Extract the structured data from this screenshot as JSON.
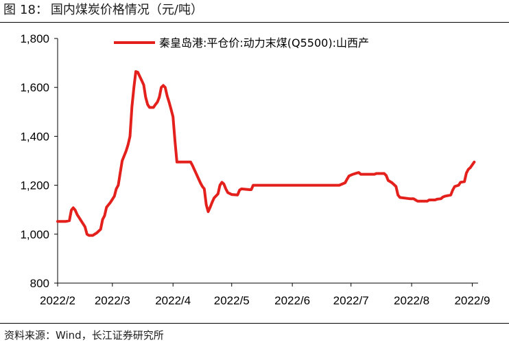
{
  "figure": {
    "label": "图",
    "number": "18：",
    "title": "国内煤炭价格情况（元/吨）"
  },
  "source_text": "资料来源：Wind，长江证券研究所",
  "chart_data": {
    "type": "line",
    "title": "国内煤炭价格情况（元/吨）",
    "xlabel": "",
    "ylabel": "",
    "ylim": [
      800,
      1800
    ],
    "yticks": [
      800,
      1000,
      1200,
      1400,
      1600,
      1800
    ],
    "ytick_labels": [
      "800",
      "1,000",
      "1,200",
      "1,400",
      "1,600",
      "1,800"
    ],
    "xlim": [
      "2022-02-01",
      "2022-09-04"
    ],
    "xticks": [
      "2022-02-01",
      "2022-03-01",
      "2022-04-01",
      "2022-05-01",
      "2022-06-01",
      "2022-07-01",
      "2022-08-01",
      "2022-09-01"
    ],
    "xtick_labels": [
      "2022/2",
      "2022/3",
      "2022/4",
      "2022/5",
      "2022/6",
      "2022/7",
      "2022/8",
      "2022/9"
    ],
    "grid": false,
    "legend_position": "top",
    "series": [
      {
        "name": "秦皇岛港:平仓价:动力末煤(Q5500):山西产",
        "color": "#e3201b",
        "points": [
          [
            "2022-02-01",
            1052
          ],
          [
            "2022-02-05",
            1052
          ],
          [
            "2022-02-07",
            1055
          ],
          [
            "2022-02-08",
            1098
          ],
          [
            "2022-02-09",
            1108
          ],
          [
            "2022-02-10",
            1098
          ],
          [
            "2022-02-11",
            1080
          ],
          [
            "2022-02-13",
            1055
          ],
          [
            "2022-02-15",
            1030
          ],
          [
            "2022-02-16",
            1000
          ],
          [
            "2022-02-17",
            995
          ],
          [
            "2022-02-19",
            995
          ],
          [
            "2022-02-21",
            1005
          ],
          [
            "2022-02-23",
            1020
          ],
          [
            "2022-02-24",
            1060
          ],
          [
            "2022-02-25",
            1075
          ],
          [
            "2022-02-26",
            1110
          ],
          [
            "2022-02-28",
            1130
          ],
          [
            "2022-03-02",
            1155
          ],
          [
            "2022-03-03",
            1185
          ],
          [
            "2022-03-04",
            1200
          ],
          [
            "2022-03-05",
            1250
          ],
          [
            "2022-03-06",
            1300
          ],
          [
            "2022-03-08",
            1340
          ],
          [
            "2022-03-09",
            1365
          ],
          [
            "2022-03-10",
            1400
          ],
          [
            "2022-03-11",
            1520
          ],
          [
            "2022-03-12",
            1600
          ],
          [
            "2022-03-13",
            1665
          ],
          [
            "2022-03-14",
            1662
          ],
          [
            "2022-03-15",
            1645
          ],
          [
            "2022-03-16",
            1628
          ],
          [
            "2022-03-17",
            1610
          ],
          [
            "2022-03-18",
            1560
          ],
          [
            "2022-03-19",
            1530
          ],
          [
            "2022-03-20",
            1518
          ],
          [
            "2022-03-22",
            1518
          ],
          [
            "2022-03-23",
            1530
          ],
          [
            "2022-03-24",
            1540
          ],
          [
            "2022-03-25",
            1560
          ],
          [
            "2022-03-26",
            1600
          ],
          [
            "2022-03-27",
            1608
          ],
          [
            "2022-03-28",
            1600
          ],
          [
            "2022-03-29",
            1565
          ],
          [
            "2022-03-30",
            1540
          ],
          [
            "2022-03-31",
            1510
          ],
          [
            "2022-04-01",
            1480
          ],
          [
            "2022-04-02",
            1380
          ],
          [
            "2022-04-03",
            1295
          ],
          [
            "2022-04-05",
            1295
          ],
          [
            "2022-04-10",
            1295
          ],
          [
            "2022-04-11",
            1280
          ],
          [
            "2022-04-13",
            1245
          ],
          [
            "2022-04-15",
            1210
          ],
          [
            "2022-04-16",
            1195
          ],
          [
            "2022-04-17",
            1185
          ],
          [
            "2022-04-18",
            1120
          ],
          [
            "2022-04-19",
            1092
          ],
          [
            "2022-04-20",
            1110
          ],
          [
            "2022-04-21",
            1130
          ],
          [
            "2022-04-22",
            1148
          ],
          [
            "2022-04-24",
            1165
          ],
          [
            "2022-04-25",
            1200
          ],
          [
            "2022-04-26",
            1212
          ],
          [
            "2022-04-27",
            1205
          ],
          [
            "2022-04-28",
            1185
          ],
          [
            "2022-04-29",
            1170
          ],
          [
            "2022-05-01",
            1162
          ],
          [
            "2022-05-04",
            1160
          ],
          [
            "2022-05-05",
            1180
          ],
          [
            "2022-05-06",
            1185
          ],
          [
            "2022-05-10",
            1182
          ],
          [
            "2022-05-11",
            1182
          ],
          [
            "2022-05-12",
            1200
          ],
          [
            "2022-05-25",
            1200
          ],
          [
            "2022-06-01",
            1200
          ],
          [
            "2022-06-15",
            1200
          ],
          [
            "2022-06-25",
            1200
          ],
          [
            "2022-06-28",
            1210
          ],
          [
            "2022-06-29",
            1225
          ],
          [
            "2022-06-30",
            1238
          ],
          [
            "2022-07-02",
            1245
          ],
          [
            "2022-07-04",
            1250
          ],
          [
            "2022-07-05",
            1252
          ],
          [
            "2022-07-06",
            1245
          ],
          [
            "2022-07-13",
            1245
          ],
          [
            "2022-07-14",
            1248
          ],
          [
            "2022-07-18",
            1248
          ],
          [
            "2022-07-19",
            1240
          ],
          [
            "2022-07-20",
            1220
          ],
          [
            "2022-07-22",
            1210
          ],
          [
            "2022-07-24",
            1195
          ],
          [
            "2022-07-25",
            1160
          ],
          [
            "2022-07-26",
            1150
          ],
          [
            "2022-07-31",
            1145
          ],
          [
            "2022-08-02",
            1145
          ],
          [
            "2022-08-03",
            1140
          ],
          [
            "2022-08-04",
            1135
          ],
          [
            "2022-08-09",
            1135
          ],
          [
            "2022-08-10",
            1140
          ],
          [
            "2022-08-13",
            1140
          ],
          [
            "2022-08-14",
            1143
          ],
          [
            "2022-08-16",
            1145
          ],
          [
            "2022-08-17",
            1152
          ],
          [
            "2022-08-18",
            1155
          ],
          [
            "2022-08-21",
            1160
          ],
          [
            "2022-08-22",
            1180
          ],
          [
            "2022-08-23",
            1195
          ],
          [
            "2022-08-25",
            1200
          ],
          [
            "2022-08-26",
            1212
          ],
          [
            "2022-08-28",
            1215
          ],
          [
            "2022-08-29",
            1250
          ],
          [
            "2022-08-30",
            1265
          ],
          [
            "2022-08-31",
            1272
          ],
          [
            "2022-09-02",
            1295
          ]
        ]
      }
    ]
  }
}
